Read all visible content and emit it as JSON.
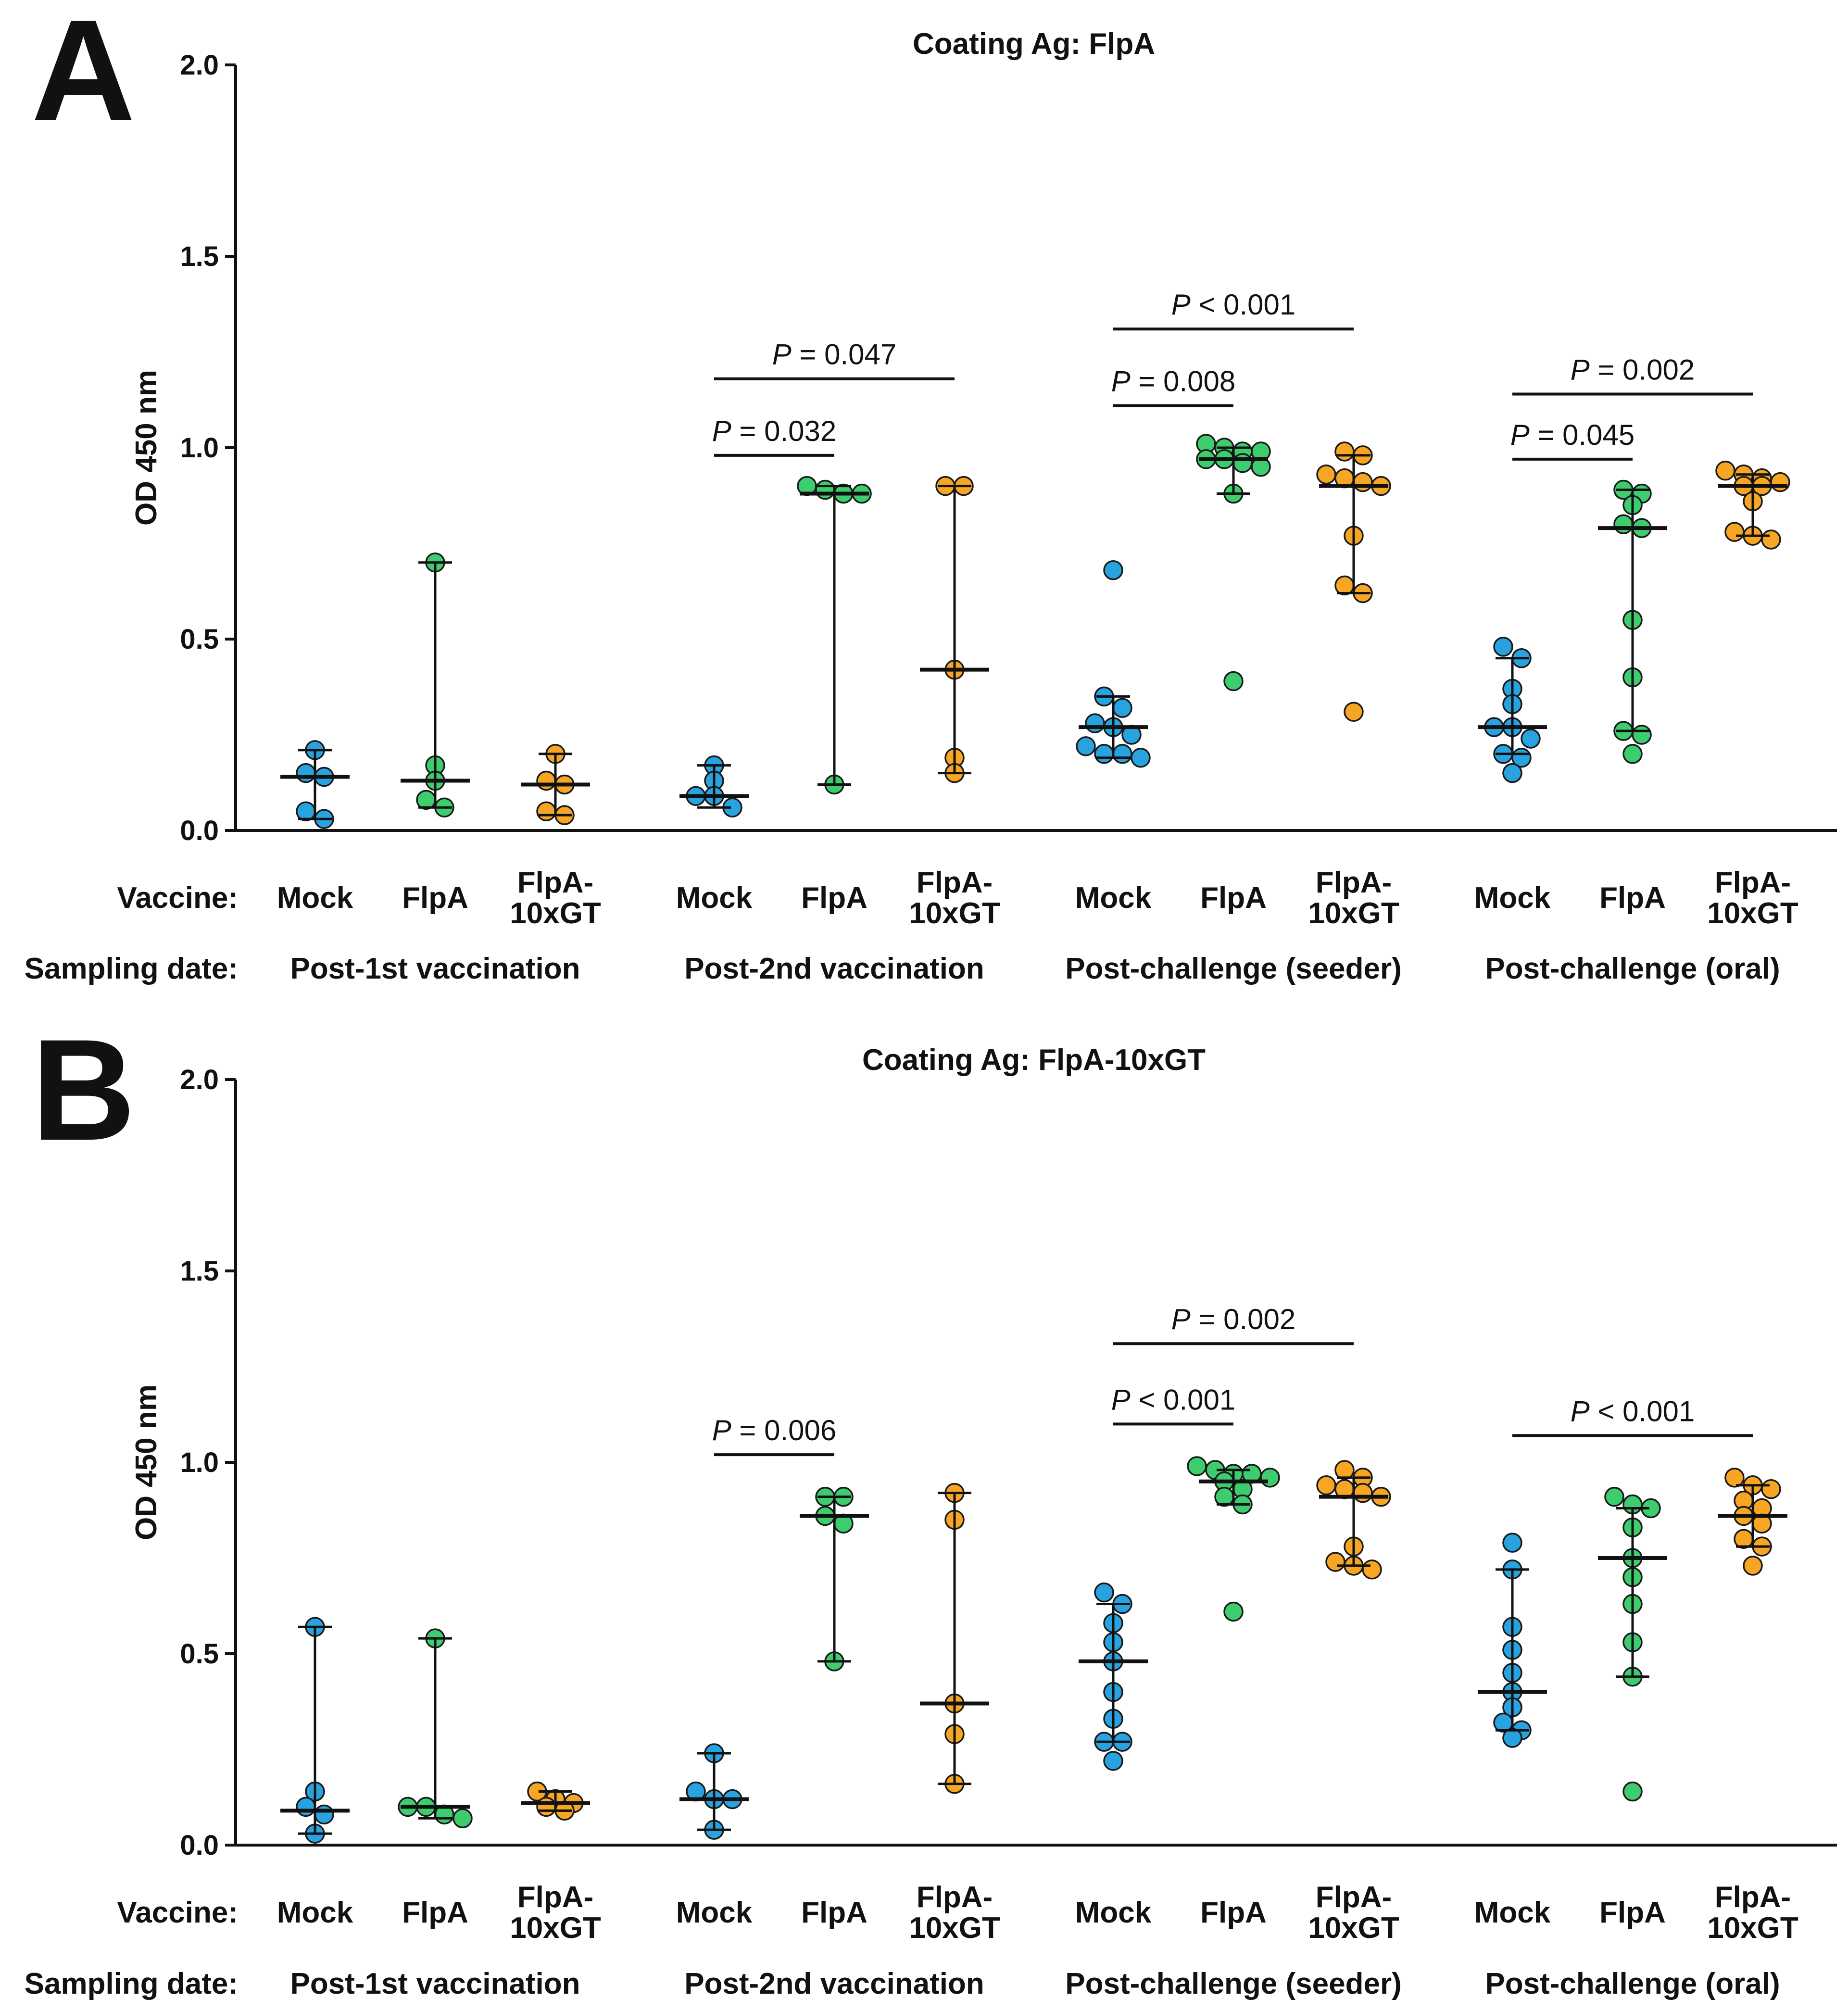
{
  "colors": {
    "Mock": "#29a3e0",
    "FlpA": "#3dcd6f",
    "FlpA-10xGT": "#f6a623",
    "axis": "#111111"
  },
  "row_labels": {
    "vaccine": "Vaccine:",
    "sampling": "Sampling date:"
  },
  "chart_data": [
    {
      "panel": "A",
      "type": "scatter",
      "title": "Coating Ag: FlpA",
      "ylabel": "OD 450 nm",
      "ylim": [
        0.0,
        2.0
      ],
      "yticks": [
        "0.0",
        "0.5",
        "1.0",
        "1.5",
        "2.0"
      ],
      "groups": [
        {
          "date": "Post-1st vaccination",
          "vaccines": [
            {
              "name": "Mock",
              "label": [
                "Mock"
              ],
              "median": 0.14,
              "range": [
                0.03,
                0.21
              ],
              "points": [
                0.21,
                0.15,
                0.14,
                0.05,
                0.03
              ]
            },
            {
              "name": "FlpA",
              "label": [
                "FlpA"
              ],
              "median": 0.13,
              "range": [
                0.06,
                0.7
              ],
              "points": [
                0.7,
                0.17,
                0.13,
                0.08,
                0.06
              ]
            },
            {
              "name": "FlpA-10xGT",
              "label": [
                "FlpA-",
                "10xGT"
              ],
              "median": 0.12,
              "range": [
                0.04,
                0.2
              ],
              "points": [
                0.2,
                0.13,
                0.12,
                0.05,
                0.04
              ]
            }
          ]
        },
        {
          "date": "Post-2nd vaccination",
          "vaccines": [
            {
              "name": "Mock",
              "label": [
                "Mock"
              ],
              "median": 0.09,
              "range": [
                0.06,
                0.17
              ],
              "points": [
                0.17,
                0.13,
                0.09,
                0.09,
                0.06
              ]
            },
            {
              "name": "FlpA",
              "label": [
                "FlpA"
              ],
              "median": 0.88,
              "range": [
                0.12,
                0.9
              ],
              "points": [
                0.9,
                0.89,
                0.88,
                0.88,
                0.12
              ]
            },
            {
              "name": "FlpA-10xGT",
              "label": [
                "FlpA-",
                "10xGT"
              ],
              "median": 0.42,
              "range": [
                0.15,
                0.9
              ],
              "points": [
                0.9,
                0.9,
                0.42,
                0.19,
                0.15
              ]
            }
          ]
        },
        {
          "date": "Post-challenge (seeder)",
          "vaccines": [
            {
              "name": "Mock",
              "label": [
                "Mock"
              ],
              "median": 0.27,
              "range": [
                0.19,
                0.35
              ],
              "points": [
                0.68,
                0.35,
                0.32,
                0.28,
                0.27,
                0.25,
                0.22,
                0.2,
                0.2,
                0.19
              ]
            },
            {
              "name": "FlpA",
              "label": [
                "FlpA"
              ],
              "median": 0.97,
              "range": [
                0.88,
                1.0
              ],
              "points": [
                1.01,
                1.0,
                0.99,
                0.99,
                0.97,
                0.97,
                0.96,
                0.95,
                0.88,
                0.39
              ]
            },
            {
              "name": "FlpA-10xGT",
              "label": [
                "FlpA-",
                "10xGT"
              ],
              "median": 0.9,
              "range": [
                0.62,
                0.98
              ],
              "points": [
                0.99,
                0.98,
                0.93,
                0.92,
                0.91,
                0.9,
                0.77,
                0.64,
                0.62,
                0.31
              ]
            }
          ]
        },
        {
          "date": "Post-challenge (oral)",
          "vaccines": [
            {
              "name": "Mock",
              "label": [
                "Mock"
              ],
              "median": 0.27,
              "range": [
                0.2,
                0.45
              ],
              "points": [
                0.48,
                0.45,
                0.37,
                0.33,
                0.27,
                0.27,
                0.24,
                0.2,
                0.19,
                0.15
              ]
            },
            {
              "name": "FlpA",
              "label": [
                "FlpA"
              ],
              "median": 0.79,
              "range": [
                0.26,
                0.89
              ],
              "points": [
                0.89,
                0.88,
                0.85,
                0.8,
                0.79,
                0.55,
                0.4,
                0.26,
                0.25,
                0.2
              ]
            },
            {
              "name": "FlpA-10xGT",
              "label": [
                "FlpA-",
                "10xGT"
              ],
              "median": 0.9,
              "range": [
                0.77,
                0.93
              ],
              "points": [
                0.94,
                0.93,
                0.92,
                0.91,
                0.9,
                0.9,
                0.86,
                0.78,
                0.77,
                0.76
              ]
            }
          ]
        }
      ],
      "significance": [
        {
          "group": 1,
          "from": 0,
          "to": 1,
          "level": 0,
          "text_italic": "P",
          "text_rest": " = 0.032",
          "y_value": 0.98
        },
        {
          "group": 1,
          "from": 0,
          "to": 2,
          "level": 1,
          "text_italic": "P",
          "text_rest": " = 0.047",
          "y_value": 1.18
        },
        {
          "group": 2,
          "from": 0,
          "to": 1,
          "level": 0,
          "text_italic": "P",
          "text_rest": " = 0.008",
          "y_value": 1.11
        },
        {
          "group": 2,
          "from": 0,
          "to": 2,
          "level": 1,
          "text_italic": "P",
          "text_rest": " < 0.001",
          "y_value": 1.31
        },
        {
          "group": 3,
          "from": 0,
          "to": 1,
          "level": 0,
          "text_italic": "P",
          "text_rest": " = 0.045",
          "y_value": 0.97
        },
        {
          "group": 3,
          "from": 0,
          "to": 2,
          "level": 1,
          "text_italic": "P",
          "text_rest": " = 0.002",
          "y_value": 1.14
        }
      ]
    },
    {
      "panel": "B",
      "type": "scatter",
      "title": "Coating Ag: FlpA-10xGT",
      "ylabel": "OD 450 nm",
      "ylim": [
        0.0,
        2.0
      ],
      "yticks": [
        "0.0",
        "0.5",
        "1.0",
        "1.5",
        "2.0"
      ],
      "groups": [
        {
          "date": "Post-1st vaccination",
          "vaccines": [
            {
              "name": "Mock",
              "label": [
                "Mock"
              ],
              "median": 0.09,
              "range": [
                0.03,
                0.57
              ],
              "points": [
                0.57,
                0.14,
                0.1,
                0.08,
                0.03
              ]
            },
            {
              "name": "FlpA",
              "label": [
                "FlpA"
              ],
              "median": 0.1,
              "range": [
                0.07,
                0.54
              ],
              "points": [
                0.54,
                0.1,
                0.1,
                0.08,
                0.07
              ]
            },
            {
              "name": "FlpA-10xGT",
              "label": [
                "FlpA-",
                "10xGT"
              ],
              "median": 0.11,
              "range": [
                0.09,
                0.14
              ],
              "points": [
                0.14,
                0.12,
                0.11,
                0.1,
                0.09
              ]
            }
          ]
        },
        {
          "date": "Post-2nd vaccination",
          "vaccines": [
            {
              "name": "Mock",
              "label": [
                "Mock"
              ],
              "median": 0.12,
              "range": [
                0.04,
                0.24
              ],
              "points": [
                0.24,
                0.14,
                0.12,
                0.12,
                0.04
              ]
            },
            {
              "name": "FlpA",
              "label": [
                "FlpA"
              ],
              "median": 0.86,
              "range": [
                0.48,
                0.91
              ],
              "points": [
                0.91,
                0.91,
                0.86,
                0.84,
                0.48
              ]
            },
            {
              "name": "FlpA-10xGT",
              "label": [
                "FlpA-",
                "10xGT"
              ],
              "median": 0.37,
              "range": [
                0.16,
                0.92
              ],
              "points": [
                0.92,
                0.85,
                0.37,
                0.29,
                0.16
              ]
            }
          ]
        },
        {
          "date": "Post-challenge (seeder)",
          "vaccines": [
            {
              "name": "Mock",
              "label": [
                "Mock"
              ],
              "median": 0.48,
              "range": [
                0.27,
                0.63
              ],
              "points": [
                0.66,
                0.63,
                0.58,
                0.53,
                0.48,
                0.4,
                0.33,
                0.27,
                0.27,
                0.22
              ]
            },
            {
              "name": "FlpA",
              "label": [
                "FlpA"
              ],
              "median": 0.95,
              "range": [
                0.89,
                0.98
              ],
              "points": [
                0.99,
                0.98,
                0.97,
                0.97,
                0.96,
                0.95,
                0.93,
                0.91,
                0.89,
                0.61
              ]
            },
            {
              "name": "FlpA-10xGT",
              "label": [
                "FlpA-",
                "10xGT"
              ],
              "median": 0.91,
              "range": [
                0.73,
                0.96
              ],
              "points": [
                0.98,
                0.96,
                0.94,
                0.93,
                0.92,
                0.91,
                0.78,
                0.74,
                0.73,
                0.72
              ]
            }
          ]
        },
        {
          "date": "Post-challenge (oral)",
          "vaccines": [
            {
              "name": "Mock",
              "label": [
                "Mock"
              ],
              "median": 0.4,
              "range": [
                0.3,
                0.72
              ],
              "points": [
                0.79,
                0.72,
                0.57,
                0.51,
                0.45,
                0.4,
                0.36,
                0.32,
                0.3,
                0.28
              ]
            },
            {
              "name": "FlpA",
              "label": [
                "FlpA"
              ],
              "median": 0.75,
              "range": [
                0.44,
                0.88
              ],
              "points": [
                0.91,
                0.89,
                0.88,
                0.83,
                0.75,
                0.7,
                0.63,
                0.53,
                0.44,
                0.14
              ]
            },
            {
              "name": "FlpA-10xGT",
              "label": [
                "FlpA-",
                "10xGT"
              ],
              "median": 0.86,
              "range": [
                0.78,
                0.94
              ],
              "points": [
                0.96,
                0.94,
                0.93,
                0.9,
                0.88,
                0.86,
                0.84,
                0.8,
                0.78,
                0.73
              ]
            }
          ]
        }
      ],
      "significance": [
        {
          "group": 1,
          "from": 0,
          "to": 1,
          "level": 0,
          "text_italic": "P",
          "text_rest": " = 0.006",
          "y_value": 1.02,
          "small": true
        },
        {
          "group": 2,
          "from": 0,
          "to": 1,
          "level": 0,
          "text_italic": "P",
          "text_rest": " < 0.001",
          "y_value": 1.1
        },
        {
          "group": 2,
          "from": 0,
          "to": 2,
          "level": 1,
          "text_italic": "P",
          "text_rest": " = 0.002",
          "y_value": 1.31
        },
        {
          "group": 3,
          "from": 0,
          "to": 2,
          "level": 0,
          "text_italic": "P",
          "text_rest": " < 0.001",
          "y_value": 1.07
        }
      ]
    }
  ]
}
